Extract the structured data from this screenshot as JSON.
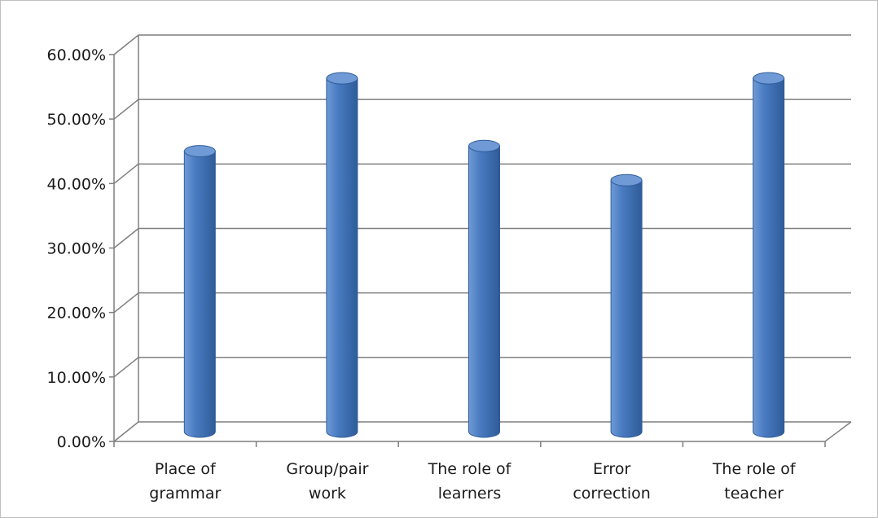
{
  "chart_data": {
    "type": "bar",
    "style": "3d-cylinder",
    "title": "",
    "xlabel": "",
    "ylabel": "",
    "categories": [
      [
        "Place of",
        "grammar"
      ],
      [
        "Group/pair",
        "work"
      ],
      [
        "The role of",
        "learners"
      ],
      [
        "Error",
        "correction"
      ],
      [
        "The role of",
        "teacher"
      ]
    ],
    "values": [
      0.435,
      0.548,
      0.443,
      0.39,
      0.548
    ],
    "ylim": [
      0,
      0.6
    ],
    "yticks": [
      "0.00%",
      "10.00%",
      "20.00%",
      "30.00%",
      "40.00%",
      "50.00%",
      "60.00%"
    ],
    "grid": true,
    "legend": "none"
  },
  "colors": {
    "bar_body": "#4a7cc2",
    "bar_dark": "#2f5c99",
    "bar_top": "#6f9ad6",
    "grid": "#7f7f7f"
  }
}
